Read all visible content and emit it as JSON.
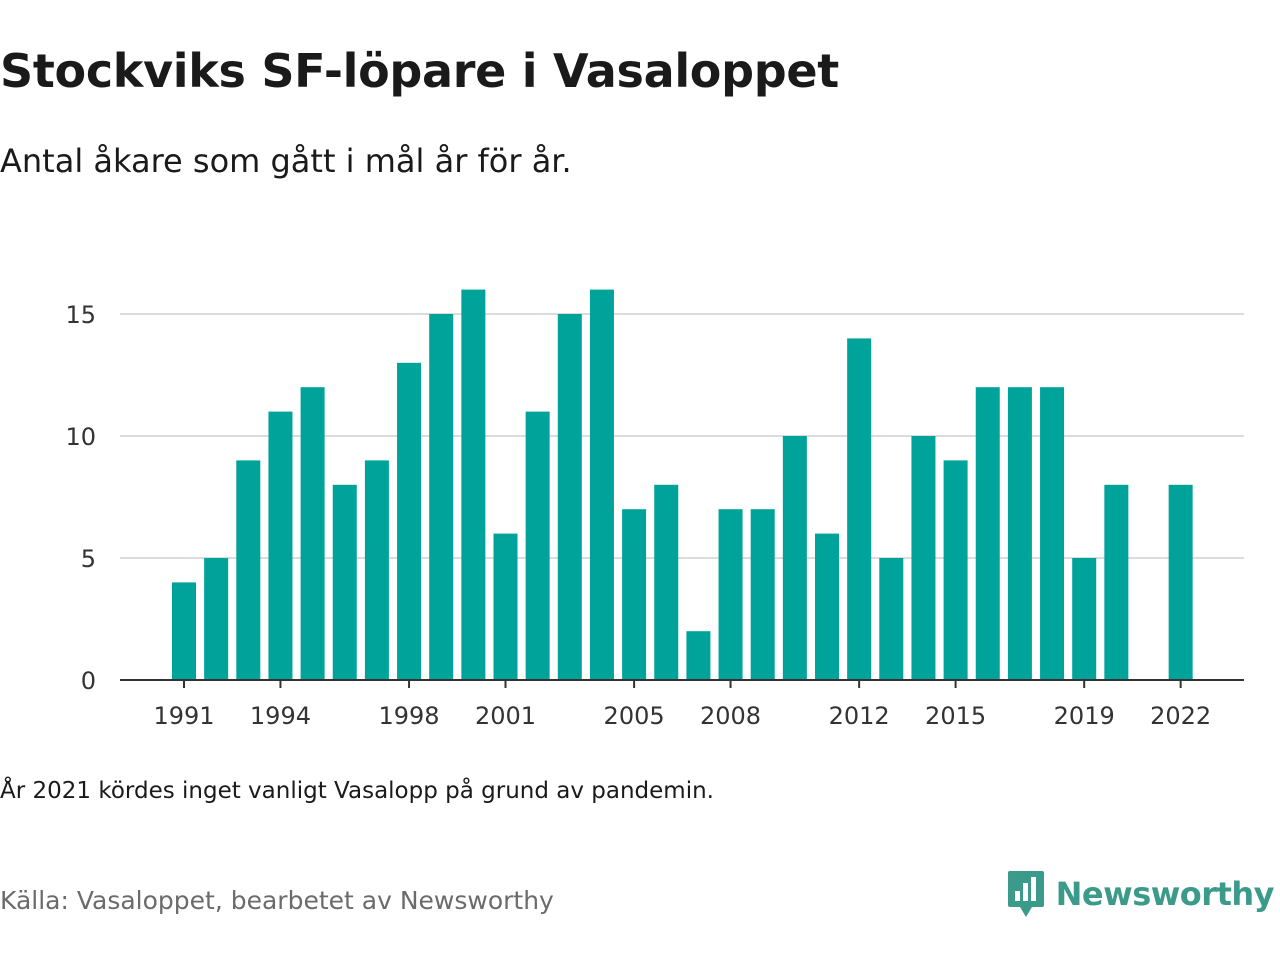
{
  "title": "Stockviks SF-löpare i Vasaloppet",
  "subtitle": "Antal åkare som gått i mål år för år.",
  "note": "År 2021 kördes inget vanligt Vasalopp på grund av pandemin.",
  "source": "Källa: Vasaloppet, bearbetet av Newsworthy",
  "logo": {
    "text": "Newsworthy",
    "icon": "newsworthy-chart-bubble-icon",
    "color": "#3b9a8a"
  },
  "chart_data": {
    "type": "bar",
    "x": [
      1991,
      1992,
      1993,
      1994,
      1995,
      1996,
      1997,
      1998,
      1999,
      2000,
      2001,
      2002,
      2003,
      2004,
      2005,
      2006,
      2007,
      2008,
      2009,
      2010,
      2011,
      2012,
      2013,
      2014,
      2015,
      2016,
      2017,
      2018,
      2019,
      2020,
      2021,
      2022
    ],
    "values": [
      4,
      5,
      9,
      11,
      12,
      8,
      9,
      13,
      15,
      16,
      6,
      11,
      15,
      16,
      7,
      8,
      2,
      7,
      7,
      10,
      6,
      14,
      5,
      10,
      9,
      12,
      12,
      12,
      5,
      8,
      null,
      8
    ],
    "x_ticks": [
      1991,
      1994,
      1998,
      2001,
      2005,
      2008,
      2012,
      2015,
      2019,
      2022
    ],
    "y_ticks": [
      0,
      5,
      10,
      15
    ],
    "ylim": [
      0,
      16
    ],
    "bar_color": "#00a39a",
    "grid": true
  }
}
